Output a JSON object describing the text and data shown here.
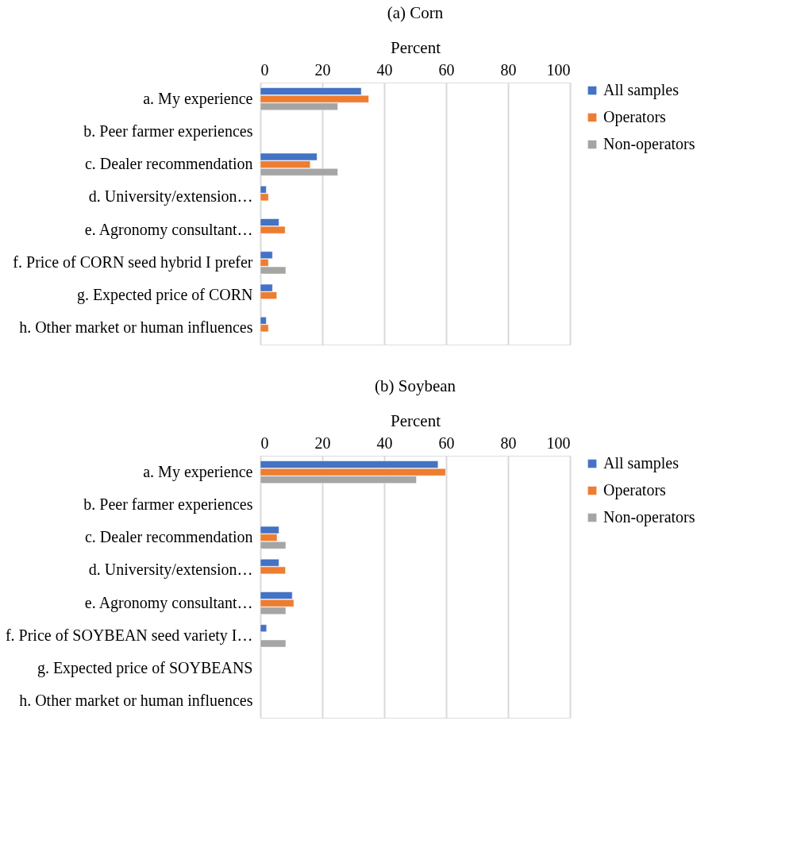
{
  "chart_data": [
    {
      "type": "bar",
      "orientation": "horizontal",
      "title": "(a) Corn",
      "xlabel": "Percent",
      "categories": [
        "a. My experience",
        "b. Peer farmer experiences",
        "c. Dealer recommendation",
        "d. University/extension…",
        "e. Agronomy consultant…",
        "f. Price of CORN seed hybrid I prefer",
        "g. Expected price of CORN",
        "h. Other market or human influences"
      ],
      "series": [
        {
          "name": "All samples",
          "color": "#4472c4",
          "values": [
            32.6,
            null,
            18.3,
            1.9,
            6.0,
            3.9,
            3.9,
            1.9
          ]
        },
        {
          "name": "Operators",
          "color": "#ed7d31",
          "values": [
            35.0,
            null,
            16.1,
            2.6,
            8.0,
            2.6,
            5.3,
            2.6
          ]
        },
        {
          "name": "Non-operators",
          "color": "#a5a5a5",
          "values": [
            25.0,
            null,
            25.0,
            null,
            null,
            8.2,
            null,
            null
          ]
        }
      ],
      "xlim": [
        0,
        100
      ],
      "xticks": [
        0,
        20,
        40,
        60,
        80,
        100
      ],
      "grid": "x",
      "legend": "right"
    },
    {
      "type": "bar",
      "orientation": "horizontal",
      "title": "(b) Soybean",
      "xlabel": "Percent",
      "categories": [
        "a. My experience",
        "b. Peer farmer experiences",
        "c. Dealer recommendation",
        "d. University/extension…",
        "e. Agronomy consultant…",
        "f. Price of SOYBEAN seed variety I…",
        "g. Expected price of SOYBEANS",
        "h. Other market or human influences"
      ],
      "series": [
        {
          "name": "All samples",
          "color": "#4472c4",
          "values": [
            57.4,
            null,
            6.0,
            6.0,
            10.3,
            2.0,
            null,
            null
          ]
        },
        {
          "name": "Operators",
          "color": "#ed7d31",
          "values": [
            59.8,
            null,
            5.4,
            8.1,
            10.8,
            null,
            null,
            null
          ]
        },
        {
          "name": "Non-operators",
          "color": "#a5a5a5",
          "values": [
            50.4,
            null,
            8.2,
            null,
            8.2,
            8.2,
            null,
            null
          ]
        }
      ],
      "xlim": [
        0,
        100
      ],
      "xticks": [
        0,
        20,
        40,
        60,
        80,
        100
      ],
      "grid": "x",
      "legend": "right"
    }
  ]
}
